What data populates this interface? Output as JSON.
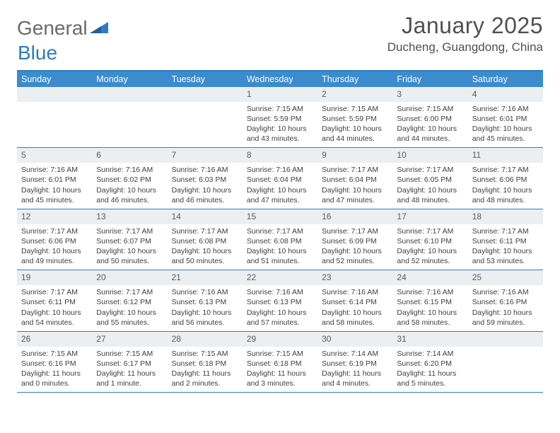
{
  "brand": {
    "text1": "General",
    "text2": "Blue"
  },
  "title": "January 2025",
  "location": "Ducheng, Guangdong, China",
  "colors": {
    "accent": "#2f7cc0",
    "headerRow": "#3b8bce",
    "dayNumBg": "#eceff1",
    "text": "#404040"
  },
  "daysOfWeek": [
    "Sunday",
    "Monday",
    "Tuesday",
    "Wednesday",
    "Thursday",
    "Friday",
    "Saturday"
  ],
  "weeks": [
    [
      {
        "n": "",
        "sr": "",
        "ss": "",
        "dl": ""
      },
      {
        "n": "",
        "sr": "",
        "ss": "",
        "dl": ""
      },
      {
        "n": "",
        "sr": "",
        "ss": "",
        "dl": ""
      },
      {
        "n": "1",
        "sr": "7:15 AM",
        "ss": "5:59 PM",
        "dl": "10 hours and 43 minutes."
      },
      {
        "n": "2",
        "sr": "7:15 AM",
        "ss": "5:59 PM",
        "dl": "10 hours and 44 minutes."
      },
      {
        "n": "3",
        "sr": "7:15 AM",
        "ss": "6:00 PM",
        "dl": "10 hours and 44 minutes."
      },
      {
        "n": "4",
        "sr": "7:16 AM",
        "ss": "6:01 PM",
        "dl": "10 hours and 45 minutes."
      }
    ],
    [
      {
        "n": "5",
        "sr": "7:16 AM",
        "ss": "6:01 PM",
        "dl": "10 hours and 45 minutes."
      },
      {
        "n": "6",
        "sr": "7:16 AM",
        "ss": "6:02 PM",
        "dl": "10 hours and 46 minutes."
      },
      {
        "n": "7",
        "sr": "7:16 AM",
        "ss": "6:03 PM",
        "dl": "10 hours and 46 minutes."
      },
      {
        "n": "8",
        "sr": "7:16 AM",
        "ss": "6:04 PM",
        "dl": "10 hours and 47 minutes."
      },
      {
        "n": "9",
        "sr": "7:17 AM",
        "ss": "6:04 PM",
        "dl": "10 hours and 47 minutes."
      },
      {
        "n": "10",
        "sr": "7:17 AM",
        "ss": "6:05 PM",
        "dl": "10 hours and 48 minutes."
      },
      {
        "n": "11",
        "sr": "7:17 AM",
        "ss": "6:06 PM",
        "dl": "10 hours and 48 minutes."
      }
    ],
    [
      {
        "n": "12",
        "sr": "7:17 AM",
        "ss": "6:06 PM",
        "dl": "10 hours and 49 minutes."
      },
      {
        "n": "13",
        "sr": "7:17 AM",
        "ss": "6:07 PM",
        "dl": "10 hours and 50 minutes."
      },
      {
        "n": "14",
        "sr": "7:17 AM",
        "ss": "6:08 PM",
        "dl": "10 hours and 50 minutes."
      },
      {
        "n": "15",
        "sr": "7:17 AM",
        "ss": "6:08 PM",
        "dl": "10 hours and 51 minutes."
      },
      {
        "n": "16",
        "sr": "7:17 AM",
        "ss": "6:09 PM",
        "dl": "10 hours and 52 minutes."
      },
      {
        "n": "17",
        "sr": "7:17 AM",
        "ss": "6:10 PM",
        "dl": "10 hours and 52 minutes."
      },
      {
        "n": "18",
        "sr": "7:17 AM",
        "ss": "6:11 PM",
        "dl": "10 hours and 53 minutes."
      }
    ],
    [
      {
        "n": "19",
        "sr": "7:17 AM",
        "ss": "6:11 PM",
        "dl": "10 hours and 54 minutes."
      },
      {
        "n": "20",
        "sr": "7:17 AM",
        "ss": "6:12 PM",
        "dl": "10 hours and 55 minutes."
      },
      {
        "n": "21",
        "sr": "7:16 AM",
        "ss": "6:13 PM",
        "dl": "10 hours and 56 minutes."
      },
      {
        "n": "22",
        "sr": "7:16 AM",
        "ss": "6:13 PM",
        "dl": "10 hours and 57 minutes."
      },
      {
        "n": "23",
        "sr": "7:16 AM",
        "ss": "6:14 PM",
        "dl": "10 hours and 58 minutes."
      },
      {
        "n": "24",
        "sr": "7:16 AM",
        "ss": "6:15 PM",
        "dl": "10 hours and 58 minutes."
      },
      {
        "n": "25",
        "sr": "7:16 AM",
        "ss": "6:16 PM",
        "dl": "10 hours and 59 minutes."
      }
    ],
    [
      {
        "n": "26",
        "sr": "7:15 AM",
        "ss": "6:16 PM",
        "dl": "11 hours and 0 minutes."
      },
      {
        "n": "27",
        "sr": "7:15 AM",
        "ss": "6:17 PM",
        "dl": "11 hours and 1 minute."
      },
      {
        "n": "28",
        "sr": "7:15 AM",
        "ss": "6:18 PM",
        "dl": "11 hours and 2 minutes."
      },
      {
        "n": "29",
        "sr": "7:15 AM",
        "ss": "6:18 PM",
        "dl": "11 hours and 3 minutes."
      },
      {
        "n": "30",
        "sr": "7:14 AM",
        "ss": "6:19 PM",
        "dl": "11 hours and 4 minutes."
      },
      {
        "n": "31",
        "sr": "7:14 AM",
        "ss": "6:20 PM",
        "dl": "11 hours and 5 minutes."
      },
      {
        "n": "",
        "sr": "",
        "ss": "",
        "dl": ""
      }
    ]
  ],
  "labels": {
    "sunrise": "Sunrise: ",
    "sunset": "Sunset: ",
    "daylight": "Daylight: "
  }
}
